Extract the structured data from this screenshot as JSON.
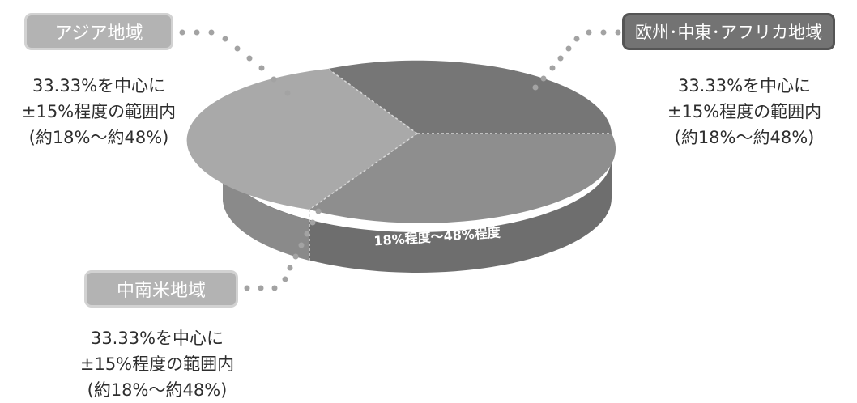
{
  "regions": [
    {
      "id": "asia",
      "label": "アジア地域",
      "lines": [
        "33.33%を中心に",
        "±15%程度の範囲内",
        "(約18%～約48%)"
      ],
      "color": "#a8a8a8"
    },
    {
      "id": "emea",
      "label": "欧州･中東･アフリカ地域",
      "lines": [
        "33.33%を中心に",
        "±15%程度の範囲内",
        "(約18%～約48%)"
      ],
      "color": "#747474"
    },
    {
      "id": "latam",
      "label": "中南米地域",
      "lines": [
        "33.33%を中心に",
        "±15%程度の範囲内",
        "(約18%～約48%)"
      ],
      "color": "#8c8c8c"
    }
  ],
  "pie_label": "18%程度～48%程度"
}
